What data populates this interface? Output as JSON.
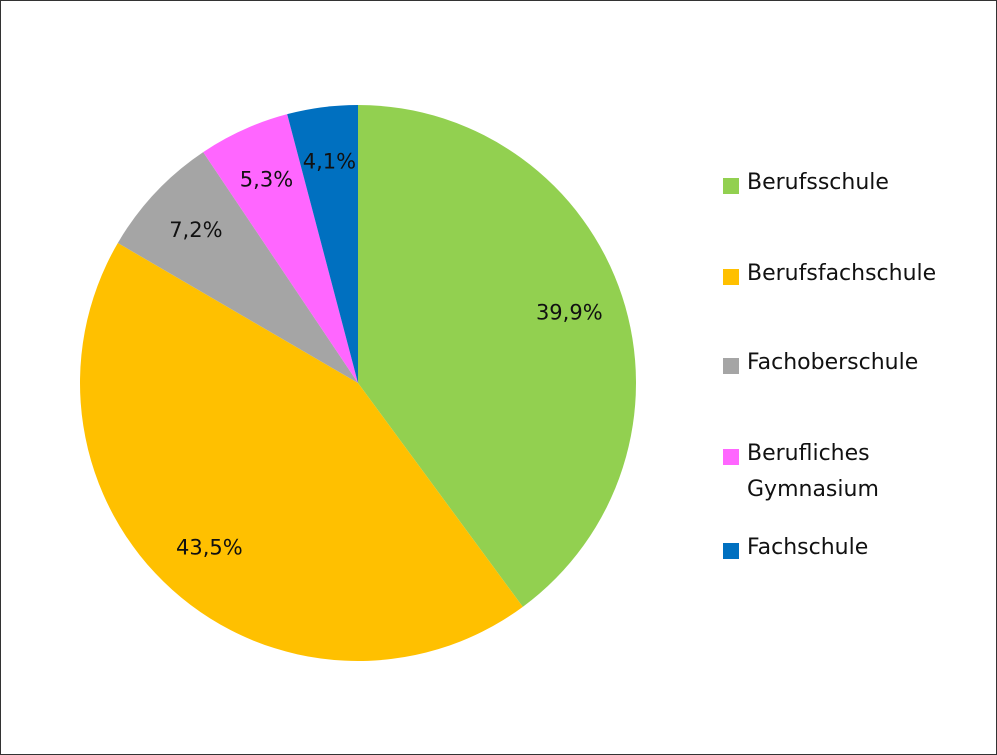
{
  "chart_data": {
    "type": "pie",
    "categories": [
      "Berufsschule",
      "Berufsfachschule",
      "Fachoberschule",
      "Berufliches Gymnasium",
      "Fachschule"
    ],
    "values": [
      39.9,
      43.5,
      7.2,
      5.3,
      4.1
    ],
    "value_labels": [
      "39,9%",
      "43,5%",
      "7,2%",
      "5,3%",
      "4,1%"
    ],
    "colors": [
      "#92d050",
      "#ffc000",
      "#a5a5a5",
      "#ff66ff",
      "#0070c0"
    ],
    "legend": "right"
  }
}
